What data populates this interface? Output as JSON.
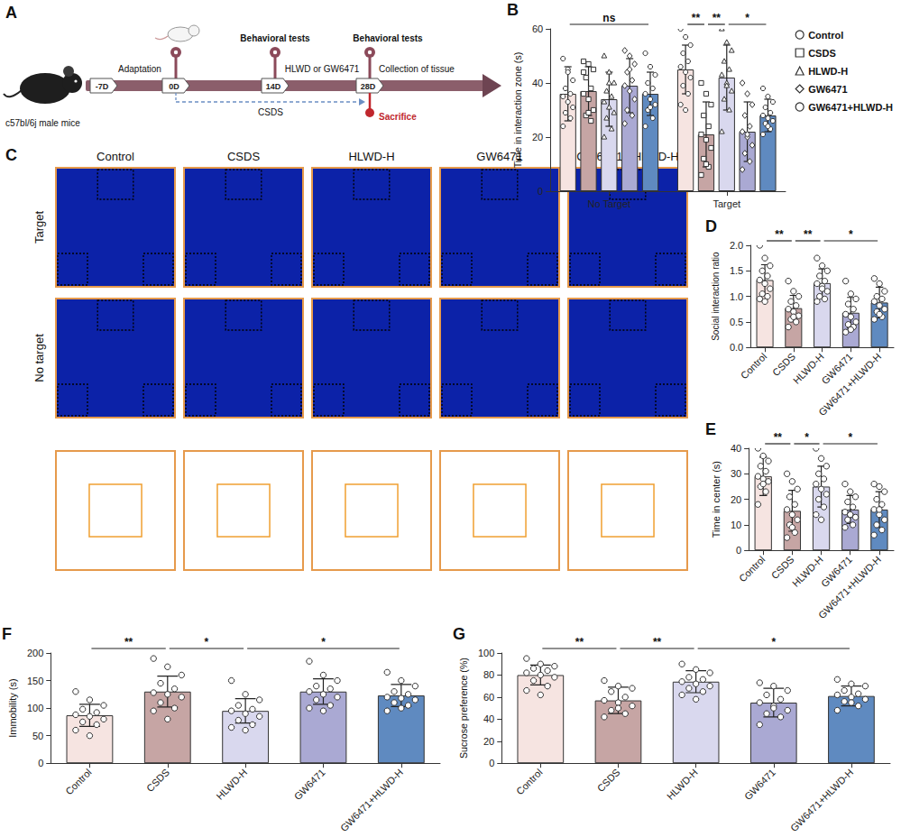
{
  "diagram": {
    "panel": "A",
    "subject": "c57bl/6j male mice",
    "days": [
      "-7D",
      "0D",
      "14D",
      "28D"
    ],
    "phase": "Adaptation",
    "tests_14": "Behavioral tests",
    "treatment": "HLWD or GW6471",
    "tests_28": "Behavioral tests",
    "end": "Collection of tissue",
    "stress": "CSDS",
    "sacrifice": "Sacrifice"
  },
  "panel_C": {
    "panel": "C",
    "columns": [
      "Control",
      "CSDS",
      "HLWD-H",
      "GW6471",
      "GW6471+ HLWD-H"
    ],
    "rows": [
      "Target",
      "No target"
    ]
  },
  "chart_data": [
    {
      "panel": "B",
      "type": "bar",
      "y_label": "Time in interaction zone (s)",
      "categories": [
        "No Target",
        "Target"
      ],
      "series": [
        {
          "name": "Control",
          "color": "#f6e4e1",
          "marker": "circle",
          "values": [
            36,
            45
          ],
          "errors": [
            10,
            9
          ],
          "points": [
            [
              49,
              45,
              41,
              38,
              36,
              35,
              33,
              31,
              29,
              27,
              24,
              44
            ],
            [
              60,
              57,
              54,
              51,
              48,
              46,
              44,
              42,
              39,
              36,
              32,
              30
            ]
          ]
        },
        {
          "name": "CSDS",
          "color": "#c6a5a4",
          "marker": "square",
          "values": [
            37,
            21
          ],
          "errors": [
            9,
            12
          ],
          "points": [
            [
              48,
              47,
              45,
              42,
              38,
              36,
              34,
              30,
              28,
              26,
              44,
              29
            ],
            [
              40,
              36,
              32,
              28,
              24,
              21,
              19,
              16,
              12,
              9,
              6,
              10
            ]
          ]
        },
        {
          "name": "HLWD-H",
          "color": "#d9d8ee",
          "marker": "triangle",
          "values": [
            34,
            42
          ],
          "errors": [
            10,
            12
          ],
          "points": [
            [
              50,
              44,
              40,
              37,
              35,
              33,
              31,
              29,
              27,
              23,
              20,
              40
            ],
            [
              60,
              55,
              52,
              48,
              45,
              43,
              40,
              37,
              34,
              30,
              22,
              39
            ]
          ]
        },
        {
          "name": "GW6471",
          "color": "#aaa9d3",
          "marker": "diamond",
          "values": [
            39,
            22
          ],
          "errors": [
            10,
            11
          ],
          "points": [
            [
              52,
              50,
              47,
              44,
              41,
              39,
              37,
              34,
              30,
              28,
              25,
              45
            ],
            [
              40,
              36,
              32,
              28,
              24,
              22,
              20,
              17,
              14,
              11,
              8,
              21
            ]
          ]
        },
        {
          "name": "GW6471+HLWD-H",
          "color": "#5f8ac0",
          "marker": "circle",
          "values": [
            36,
            28
          ],
          "errors": [
            8,
            6
          ],
          "points": [
            [
              51,
              46,
              43,
              40,
              38,
              36,
              34,
              32,
              30,
              27,
              24,
              31
            ],
            [
              38,
              35,
              33,
              31,
              29,
              28,
              27,
              26,
              25,
              23,
              21,
              24
            ]
          ]
        }
      ],
      "ylim": [
        0,
        60
      ],
      "yticks": [
        0,
        20,
        40,
        60
      ],
      "grid": false,
      "legend": "right",
      "significance": [
        {
          "category": 0,
          "from": 0,
          "to": 4,
          "label": "ns"
        },
        {
          "category": 1,
          "from": 0,
          "to": 1,
          "label": "**"
        },
        {
          "category": 1,
          "from": 1,
          "to": 2,
          "label": "**"
        },
        {
          "category": 1,
          "from": 2,
          "to": 4,
          "label": "*"
        }
      ]
    },
    {
      "panel": "D",
      "type": "bar",
      "y_label": "Social interaction ratio",
      "categories": [
        "Control",
        "CSDS",
        "HLWD-H",
        "GW6471",
        "GW6471+HLWD-H"
      ],
      "colors": [
        "#f6e4e1",
        "#c6a5a4",
        "#d9d8ee",
        "#aaa9d3",
        "#5f8ac0"
      ],
      "marker": "circle",
      "values": [
        1.32,
        0.77,
        1.26,
        0.68,
        0.88
      ],
      "errors": [
        0.3,
        0.25,
        0.28,
        0.3,
        0.3
      ],
      "points": [
        [
          2.0,
          1.75,
          1.6,
          1.5,
          1.4,
          1.32,
          1.25,
          1.15,
          1.05,
          1.0,
          0.95,
          0.9
        ],
        [
          1.3,
          1.1,
          1.0,
          0.9,
          0.82,
          0.75,
          0.7,
          0.62,
          0.55,
          0.5,
          0.4,
          0.6
        ],
        [
          1.75,
          1.6,
          1.5,
          1.4,
          1.3,
          1.25,
          1.2,
          1.1,
          1.0,
          0.95,
          0.9,
          1.15
        ],
        [
          1.3,
          1.05,
          0.95,
          0.85,
          0.75,
          0.65,
          0.6,
          0.5,
          0.45,
          0.4,
          0.3,
          0.35
        ],
        [
          1.35,
          1.25,
          1.1,
          1.0,
          0.95,
          0.9,
          0.82,
          0.75,
          0.7,
          0.6,
          0.55,
          0.65
        ]
      ],
      "ylim": [
        0,
        2
      ],
      "yticks": [
        {
          "value": 0,
          "label": "0.0"
        },
        {
          "value": 0.5,
          "label": "0.5"
        },
        {
          "value": 1,
          "label": "1.0"
        },
        {
          "value": 1.5,
          "label": "1.5"
        },
        {
          "value": 2,
          "label": "2.0"
        }
      ],
      "grid": false,
      "significance": [
        {
          "from": 0,
          "to": 1,
          "label": "**"
        },
        {
          "from": 1,
          "to": 2,
          "label": "**"
        },
        {
          "from": 2,
          "to": 4,
          "label": "*"
        }
      ]
    },
    {
      "panel": "E",
      "type": "bar",
      "y_label": "Time in center (s)",
      "categories": [
        "Control",
        "CSDS",
        "HLWD-H",
        "GW6471",
        "GW6471+HLWD-H"
      ],
      "colors": [
        "#f6e4e1",
        "#c6a5a4",
        "#d9d8ee",
        "#aaa9d3",
        "#5f8ac0"
      ],
      "marker": "circle",
      "values": [
        29,
        15.5,
        25,
        16,
        16
      ],
      "errors": [
        7.5,
        8,
        8,
        5.5,
        7
      ],
      "points": [
        [
          40,
          37,
          35,
          33,
          31,
          29,
          28,
          27,
          25,
          23,
          18,
          26
        ],
        [
          30,
          27,
          24,
          21,
          18,
          16,
          14,
          12,
          10,
          7,
          5,
          9
        ],
        [
          40,
          36,
          33,
          30,
          28,
          26,
          24,
          22,
          20,
          17,
          14,
          12
        ],
        [
          26,
          23,
          21,
          19,
          17,
          15,
          14,
          13,
          12,
          10,
          9,
          14
        ],
        [
          26,
          25,
          23,
          20,
          18,
          16,
          14,
          12,
          10,
          8,
          6,
          16
        ]
      ],
      "ylim": [
        0,
        40
      ],
      "yticks": [
        0,
        10,
        20,
        30,
        40
      ],
      "grid": false,
      "significance": [
        {
          "from": 0,
          "to": 1,
          "label": "**"
        },
        {
          "from": 1,
          "to": 2,
          "label": "*"
        },
        {
          "from": 2,
          "to": 4,
          "label": "*"
        }
      ]
    },
    {
      "panel": "F",
      "type": "bar",
      "y_label": "Immobility (s)",
      "categories": [
        "Control",
        "CSDS",
        "HLWD-H",
        "GW6471",
        "GW6471+HLWD-H"
      ],
      "colors": [
        "#f6e4e1",
        "#c6a5a4",
        "#d9d8ee",
        "#aaa9d3",
        "#5f8ac0"
      ],
      "marker": "circle",
      "values": [
        87,
        130,
        95,
        130,
        123
      ],
      "errors": [
        20,
        28,
        22,
        23,
        20
      ],
      "points": [
        [
          130,
          115,
          105,
          98,
          92,
          88,
          85,
          80,
          75,
          70,
          60,
          50
        ],
        [
          190,
          175,
          160,
          145,
          135,
          128,
          125,
          120,
          110,
          100,
          95,
          80
        ],
        [
          150,
          125,
          115,
          105,
          98,
          95,
          90,
          85,
          78,
          70,
          65,
          60
        ],
        [
          185,
          160,
          150,
          140,
          135,
          130,
          125,
          120,
          115,
          105,
          100,
          95
        ],
        [
          165,
          150,
          140,
          130,
          125,
          120,
          118,
          115,
          110,
          105,
          95,
          100
        ]
      ],
      "ylim": [
        0,
        200
      ],
      "yticks": [
        0,
        50,
        100,
        150,
        200
      ],
      "grid": false,
      "significance": [
        {
          "from": 0,
          "to": 1,
          "label": "**"
        },
        {
          "from": 1,
          "to": 2,
          "label": "*"
        },
        {
          "from": 2,
          "to": 4,
          "label": "*"
        }
      ]
    },
    {
      "panel": "G",
      "type": "bar",
      "y_label": "Sucrose preference (%)",
      "categories": [
        "Control",
        "CSDS",
        "HLWD-H",
        "GW6471",
        "GW6471+HLWD-H"
      ],
      "colors": [
        "#f6e4e1",
        "#c6a5a4",
        "#d9d8ee",
        "#aaa9d3",
        "#5f8ac0"
      ],
      "marker": "circle",
      "values": [
        80,
        57,
        74,
        55,
        61
      ],
      "errors": [
        9,
        12,
        10,
        13,
        9
      ],
      "points": [
        [
          95,
          90,
          88,
          86,
          84,
          82,
          80,
          78,
          75,
          70,
          66,
          62
        ],
        [
          75,
          70,
          68,
          65,
          60,
          57,
          55,
          52,
          48,
          45,
          42,
          50
        ],
        [
          90,
          85,
          82,
          78,
          76,
          74,
          72,
          70,
          68,
          65,
          62,
          58
        ],
        [
          73,
          70,
          66,
          62,
          58,
          55,
          52,
          48,
          45,
          42,
          35,
          50
        ],
        [
          76,
          72,
          70,
          66,
          63,
          62,
          60,
          58,
          56,
          52,
          48,
          55
        ]
      ],
      "ylim": [
        0,
        100
      ],
      "yticks": [
        0,
        20,
        40,
        60,
        80,
        100
      ],
      "grid": false,
      "significance": [
        {
          "from": 0,
          "to": 1,
          "label": "**"
        },
        {
          "from": 1,
          "to": 2,
          "label": "**"
        },
        {
          "from": 2,
          "to": 4,
          "label": "*"
        }
      ]
    }
  ]
}
